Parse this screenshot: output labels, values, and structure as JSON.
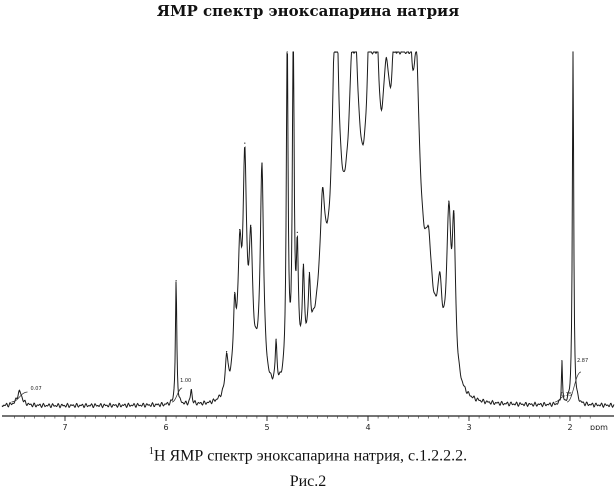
{
  "title": "ЯМР спектр эноксапарина натрия",
  "caption": {
    "superscript": "1",
    "text": "H ЯМР спектр эноксапарина натрия, с.1.2.2.2."
  },
  "figure_label": "Рис.2",
  "chart_data": {
    "type": "line",
    "title": "ЯМР спектр эноксапарина натрия",
    "xlabel": "ppm",
    "ylabel": "",
    "xlim": [
      7.6,
      1.75
    ],
    "x_reversed": true,
    "grid": false,
    "x_ticks": [
      "7",
      "6",
      "5",
      "4",
      "3",
      "2"
    ],
    "x_unit_label": "ppm",
    "peaks": [
      {
        "x": 7.45,
        "y": 4,
        "w": 0.03
      },
      {
        "x": 5.9,
        "y": 35,
        "w": 0.008
      },
      {
        "x": 5.75,
        "y": 4,
        "w": 0.01
      },
      {
        "x": 5.4,
        "y": 10,
        "w": 0.015
      },
      {
        "x": 5.32,
        "y": 18,
        "w": 0.015
      },
      {
        "x": 5.27,
        "y": 30,
        "w": 0.02
      },
      {
        "x": 5.22,
        "y": 55,
        "w": 0.02
      },
      {
        "x": 5.16,
        "y": 32,
        "w": 0.02
      },
      {
        "x": 5.05,
        "y": 60,
        "w": 0.02
      },
      {
        "x": 4.91,
        "y": 12,
        "w": 0.01
      },
      {
        "x": 4.8,
        "y": 100,
        "w": 0.01
      },
      {
        "x": 4.74,
        "y": 100,
        "w": 0.01
      },
      {
        "x": 4.7,
        "y": 30,
        "w": 0.012
      },
      {
        "x": 4.64,
        "y": 22,
        "w": 0.012
      },
      {
        "x": 4.58,
        "y": 16,
        "w": 0.012
      },
      {
        "x": 4.45,
        "y": 28,
        "w": 0.03
      },
      {
        "x": 4.32,
        "y": 80,
        "w": 0.035
      },
      {
        "x": 4.14,
        "y": 65,
        "w": 0.05
      },
      {
        "x": 3.98,
        "y": 52,
        "w": 0.035
      },
      {
        "x": 3.92,
        "y": 46,
        "w": 0.03
      },
      {
        "x": 3.82,
        "y": 32,
        "w": 0.04
      },
      {
        "x": 3.72,
        "y": 58,
        "w": 0.03
      },
      {
        "x": 3.67,
        "y": 68,
        "w": 0.03
      },
      {
        "x": 3.6,
        "y": 58,
        "w": 0.03
      },
      {
        "x": 3.52,
        "y": 45,
        "w": 0.035
      },
      {
        "x": 3.4,
        "y": 15,
        "w": 0.03
      },
      {
        "x": 3.29,
        "y": 16,
        "w": 0.025
      },
      {
        "x": 3.2,
        "y": 42,
        "w": 0.025
      },
      {
        "x": 3.15,
        "y": 40,
        "w": 0.02
      },
      {
        "x": 2.08,
        "y": 12,
        "w": 0.006
      },
      {
        "x": 1.97,
        "y": 100,
        "w": 0.008
      }
    ],
    "integrals": [
      {
        "x": 7.45,
        "label": "0.07"
      },
      {
        "x": 5.89,
        "label": "1.00"
      },
      {
        "x": 2.1,
        "label": "0.15"
      },
      {
        "x": 1.96,
        "label": "2.87"
      }
    ]
  }
}
